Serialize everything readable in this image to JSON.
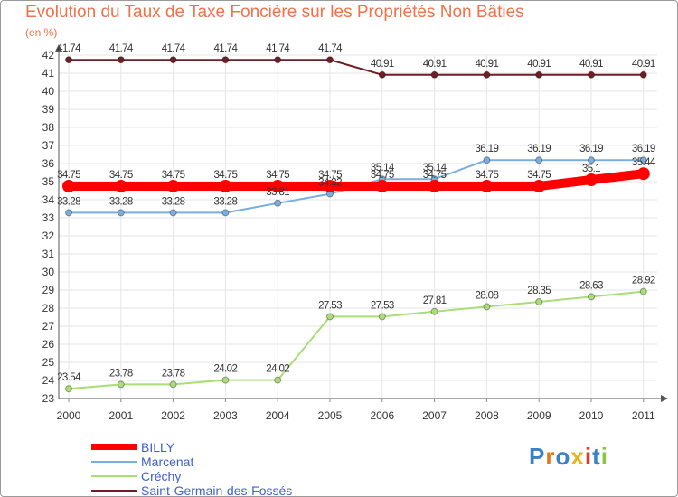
{
  "chart_data": {
    "type": "line",
    "title": "Evolution du Taux de Taxe Foncière sur les Propriétés Non Bâties",
    "ylabel": "(en %)",
    "xlabel": "",
    "categories": [
      "2000",
      "2001",
      "2002",
      "2003",
      "2004",
      "2005",
      "2006",
      "2007",
      "2008",
      "2009",
      "2010",
      "2011"
    ],
    "ylim": [
      23,
      42
    ],
    "yticks": [
      23,
      24,
      25,
      26,
      27,
      28,
      29,
      30,
      31,
      32,
      33,
      34,
      35,
      36,
      37,
      38,
      39,
      40,
      41,
      42
    ],
    "grid": true,
    "legend_position": "bottom-left",
    "series": [
      {
        "name": "Saint-Germain-des-Fossés",
        "color": "#6e1f25",
        "values": [
          41.74,
          41.74,
          41.74,
          41.74,
          41.74,
          41.74,
          40.91,
          40.91,
          40.91,
          40.91,
          40.91,
          40.91
        ],
        "labels": [
          "41.74",
          "41.74",
          "41.74",
          "41.74",
          "41.74",
          "41.74",
          "40.91",
          "40.91",
          "40.91",
          "40.91",
          "40.91",
          "40.91"
        ]
      },
      {
        "name": "Marcenat",
        "color": "#7aaedc",
        "values": [
          33.28,
          33.28,
          33.28,
          33.28,
          33.81,
          34.32,
          35.14,
          35.14,
          36.19,
          36.19,
          36.19,
          36.19
        ],
        "labels": [
          "33.28",
          "33.28",
          "33.28",
          "33.28",
          "33.81",
          "34.32",
          "35.14",
          "35.14",
          "36.19",
          "36.19",
          "36.19",
          "36.19"
        ]
      },
      {
        "name": "BILLY",
        "color": "#ff0000",
        "values": [
          34.75,
          34.75,
          34.75,
          34.75,
          34.75,
          34.75,
          34.75,
          34.75,
          34.75,
          34.75,
          35.1,
          35.44
        ],
        "labels": [
          "34.75",
          "34.75",
          "34.75",
          "34.75",
          "34.75",
          "34.75",
          "34.75",
          "34.75",
          "34.75",
          "34.75",
          "35.1",
          "35.44"
        ]
      },
      {
        "name": "Créchy",
        "color": "#a9dd77",
        "values": [
          23.54,
          23.78,
          23.78,
          24.02,
          24.02,
          27.53,
          27.53,
          27.81,
          28.08,
          28.35,
          28.63,
          28.92
        ],
        "labels": [
          "23.54",
          "23.78",
          "23.78",
          "24.02",
          "24.02",
          "27.53",
          "27.53",
          "27.81",
          "28.08",
          "28.35",
          "28.63",
          "28.92"
        ]
      }
    ]
  },
  "legend": {
    "items": [
      {
        "name": "BILLY",
        "color": "#ff0000"
      },
      {
        "name": "Marcenat",
        "color": "#7aaedc"
      },
      {
        "name": "Créchy",
        "color": "#a9dd77"
      },
      {
        "name": "Saint-Germain-des-Fossés",
        "color": "#6e1f25"
      }
    ]
  },
  "logo": {
    "letters": [
      "P",
      "r",
      "o",
      "x",
      "i",
      "t",
      "i"
    ],
    "colors": [
      "#3b82c4",
      "#e07b1d",
      "#3b82c4",
      "#e8b51e",
      "#e23a2a",
      "#3b82c4",
      "#8cc63f"
    ]
  }
}
